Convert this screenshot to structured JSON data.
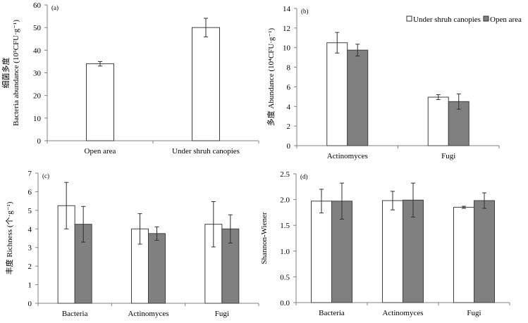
{
  "colors": {
    "under_shrub": "#ffffff",
    "open_area": "#808080",
    "axis": "#808080",
    "bar_stroke": "#404040"
  },
  "legend": {
    "position": "top-right",
    "items": [
      {
        "name": "Under shruh canopies",
        "color": "#ffffff"
      },
      {
        "name": "Open area",
        "color": "#808080"
      }
    ]
  },
  "chart_data": [
    {
      "type": "bar",
      "panel": "(a)",
      "ylabel": [
        "细菌多度",
        "Bacteria abundance (10⁵CFU·g⁻¹)"
      ],
      "ylim": [
        0,
        60
      ],
      "yticks": [
        "0",
        "10",
        "20",
        "30",
        "40",
        "50",
        "60"
      ],
      "categories": [
        "Open area",
        "Under shruh canopies"
      ],
      "series": [
        {
          "values": [
            34,
            50
          ],
          "errors": [
            1.0,
            4.1
          ],
          "color": "#ffffff"
        }
      ]
    },
    {
      "type": "bar",
      "panel": "(b)",
      "ylabel": [
        "多度 Abundance (10⁴CFU·g⁻¹)"
      ],
      "ylim": [
        0,
        14
      ],
      "yticks": [
        "0",
        "2",
        "4",
        "6",
        "8",
        "10",
        "12",
        "14"
      ],
      "categories": [
        "Actinomyces",
        "Fugi"
      ],
      "legend": true,
      "series": [
        {
          "name": "Under shruh canopies",
          "values": [
            10.5,
            4.95
          ],
          "errors": [
            1.05,
            0.25
          ],
          "color": "#ffffff"
        },
        {
          "name": "Open area",
          "values": [
            9.75,
            4.5
          ],
          "errors": [
            0.6,
            0.78
          ],
          "color": "#808080"
        }
      ]
    },
    {
      "type": "bar",
      "panel": "(c)",
      "ylabel": [
        "丰度 Richness (个·g⁻¹)"
      ],
      "ylim": [
        0,
        7
      ],
      "yticks": [
        "0",
        "1",
        "2",
        "3",
        "4",
        "5",
        "6",
        "7"
      ],
      "categories": [
        "Bacteria",
        "Actinomyces",
        "Fugi"
      ],
      "series": [
        {
          "name": "Under shruh canopies",
          "values": [
            5.25,
            4.0,
            4.25
          ],
          "errors": [
            1.25,
            0.82,
            1.22
          ],
          "color": "#ffffff"
        },
        {
          "name": "Open area",
          "values": [
            4.25,
            3.75,
            4.0
          ],
          "errors": [
            0.96,
            0.36,
            0.76
          ],
          "color": "#808080"
        }
      ]
    },
    {
      "type": "bar",
      "panel": "(d)",
      "ylabel": [
        "Shannon-Wiener"
      ],
      "ylim": [
        0,
        2.5
      ],
      "yticks": [
        "0.0",
        "0.5",
        "1.0",
        "1.5",
        "2.0",
        "2.5"
      ],
      "categories": [
        "Bacteria",
        "Actinomyces",
        "Fugi"
      ],
      "series": [
        {
          "name": "Under shruh canopies",
          "values": [
            1.97,
            1.98,
            1.85
          ],
          "errors": [
            0.23,
            0.18,
            0.02
          ],
          "color": "#ffffff"
        },
        {
          "name": "Open area",
          "values": [
            1.97,
            1.99,
            1.98
          ],
          "errors": [
            0.35,
            0.33,
            0.15
          ],
          "color": "#808080"
        }
      ]
    }
  ]
}
